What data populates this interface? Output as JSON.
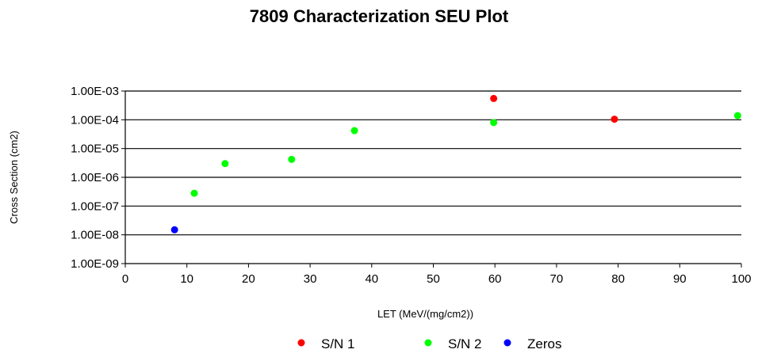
{
  "chart_data": {
    "type": "scatter",
    "title": "7809 Characterization SEU Plot",
    "xlabel": "LET (MeV/(mg/cm2))",
    "ylabel": "Cross Section (cm2)",
    "xlim": [
      0,
      100
    ],
    "ylim": [
      1e-09,
      0.001
    ],
    "yscale": "log",
    "x_ticks": [
      "0",
      "10",
      "20",
      "30",
      "40",
      "50",
      "60",
      "70",
      "80",
      "90",
      "100"
    ],
    "y_ticks": [
      "1.00E-09",
      "1.00E-08",
      "1.00E-07",
      "1.00E-06",
      "1.00E-05",
      "1.00E-04",
      "1.00E-03"
    ],
    "grid": "horizontal",
    "legend_position": "bottom",
    "series": [
      {
        "name": "S/N 1",
        "color": "#ff0000",
        "points": [
          {
            "x": 59.8,
            "y": 0.00055
          },
          {
            "x": 79.4,
            "y": 0.000105
          }
        ]
      },
      {
        "name": "S/N 2",
        "color": "#00ff00",
        "points": [
          {
            "x": 11.2,
            "y": 2.8e-07
          },
          {
            "x": 16.2,
            "y": 3e-06
          },
          {
            "x": 27.0,
            "y": 4.2e-06
          },
          {
            "x": 37.2,
            "y": 4.2e-05
          },
          {
            "x": 59.8,
            "y": 8e-05
          },
          {
            "x": 99.4,
            "y": 0.00014
          }
        ]
      },
      {
        "name": "Zeros",
        "color": "#0000ff",
        "points": [
          {
            "x": 8.0,
            "y": 1.5e-08
          }
        ]
      }
    ]
  }
}
